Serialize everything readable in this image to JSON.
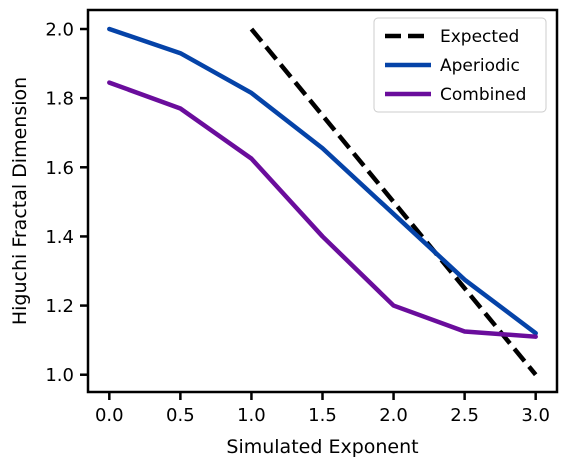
{
  "chart_data": {
    "type": "line",
    "title": "",
    "xlabel": "Simulated Exponent",
    "ylabel": "Higuchi Fractal Dimension",
    "xlim": [
      -0.15,
      3.15
    ],
    "ylim": [
      0.95,
      2.055
    ],
    "xticks": [
      0.0,
      0.5,
      1.0,
      1.5,
      2.0,
      2.5,
      3.0
    ],
    "xtick_labels": [
      "0.0",
      "0.5",
      "1.0",
      "1.5",
      "2.0",
      "2.5",
      "3.0"
    ],
    "yticks": [
      1.0,
      1.2,
      1.4,
      1.6,
      1.8,
      2.0
    ],
    "ytick_labels": [
      "1.0",
      "1.2",
      "1.4",
      "1.6",
      "1.8",
      "2.0"
    ],
    "grid": false,
    "legend_position": "top-right",
    "series": [
      {
        "name": "Expected",
        "color": "#000000",
        "dash": true,
        "x": [
          1.0,
          3.0
        ],
        "y": [
          2.0,
          1.0
        ]
      },
      {
        "name": "Aperiodic",
        "color": "#0543a8",
        "dash": false,
        "x": [
          0.0,
          0.5,
          1.0,
          1.5,
          2.0,
          2.5,
          3.0
        ],
        "y": [
          2.0,
          1.93,
          1.815,
          1.655,
          1.465,
          1.275,
          1.12
        ]
      },
      {
        "name": "Combined",
        "color": "#6a0d9c",
        "dash": false,
        "x": [
          0.0,
          0.5,
          1.0,
          1.5,
          2.0,
          2.5,
          3.0
        ],
        "y": [
          1.845,
          1.77,
          1.625,
          1.4,
          1.2,
          1.125,
          1.11
        ]
      }
    ]
  }
}
